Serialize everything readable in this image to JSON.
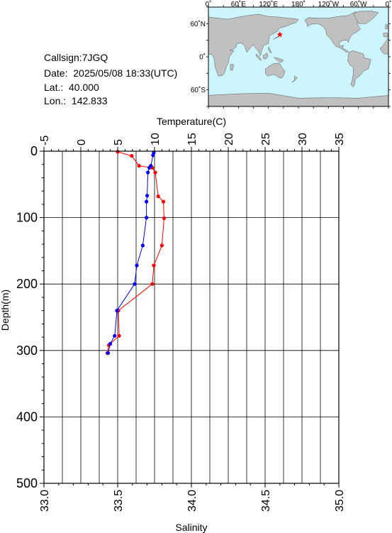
{
  "station": {
    "callsign": "Callsign:7JGQ",
    "date": "Date:  2025/05/08 18:33(UTC)",
    "lat": "Lat.:  40.000",
    "lon": "Lon.:  142.833"
  },
  "map": {
    "lon_labels": [
      "0˚",
      "60˚E",
      "120˚E",
      "180˚",
      "120˚W",
      "60˚W",
      "0˚"
    ],
    "lat_labels": [
      "60˚N",
      "0˚",
      "60˚S"
    ],
    "ocean_color": "#ccf5ff",
    "land_color": "#c0c0c0",
    "marker_color": "#ff0000",
    "marker": {
      "lon": 142.833,
      "lat": 40.0
    }
  },
  "chart_data": {
    "type": "line",
    "xlabel_top": "Temperature(C)",
    "xlabel_bottom": "Salinity",
    "ylabel": "Depth(m)",
    "temperature_axis": {
      "range": [
        -5,
        35
      ],
      "ticks": [
        "-5",
        "0",
        "5",
        "10",
        "15",
        "20",
        "25",
        "30",
        "35"
      ]
    },
    "salinity_axis": {
      "range": [
        33.0,
        35.0
      ],
      "ticks": [
        "33.0",
        "33.5",
        "34.0",
        "34.5",
        "35.0"
      ]
    },
    "depth_axis": {
      "range": [
        0,
        500
      ],
      "ticks": [
        "0",
        "100",
        "200",
        "300",
        "400",
        "500"
      ]
    },
    "grid": true,
    "series": [
      {
        "color": "#ff0000",
        "axis": "temperature",
        "points": [
          [
            5.0,
            1
          ],
          [
            6.9,
            7
          ],
          [
            7.9,
            22
          ],
          [
            9.7,
            25
          ],
          [
            10.1,
            32
          ],
          [
            10.5,
            68
          ],
          [
            11.2,
            76
          ],
          [
            11.3,
            101
          ],
          [
            11.0,
            142
          ],
          [
            9.9,
            172
          ],
          [
            9.7,
            200
          ],
          [
            5.1,
            240
          ],
          [
            5.2,
            278
          ],
          [
            3.8,
            292
          ],
          [
            3.6,
            304
          ]
        ]
      },
      {
        "color": "#0000ff",
        "axis": "temperature",
        "points": [
          [
            9.9,
            2
          ],
          [
            9.8,
            6
          ],
          [
            9.5,
            22
          ],
          [
            9.3,
            25
          ],
          [
            9.1,
            32
          ],
          [
            9.0,
            67
          ],
          [
            8.9,
            76
          ],
          [
            8.9,
            100
          ],
          [
            8.4,
            142
          ],
          [
            7.6,
            172
          ],
          [
            7.3,
            200
          ],
          [
            4.9,
            240
          ],
          [
            4.6,
            278
          ],
          [
            4.0,
            290
          ],
          [
            3.7,
            304
          ]
        ]
      }
    ]
  }
}
